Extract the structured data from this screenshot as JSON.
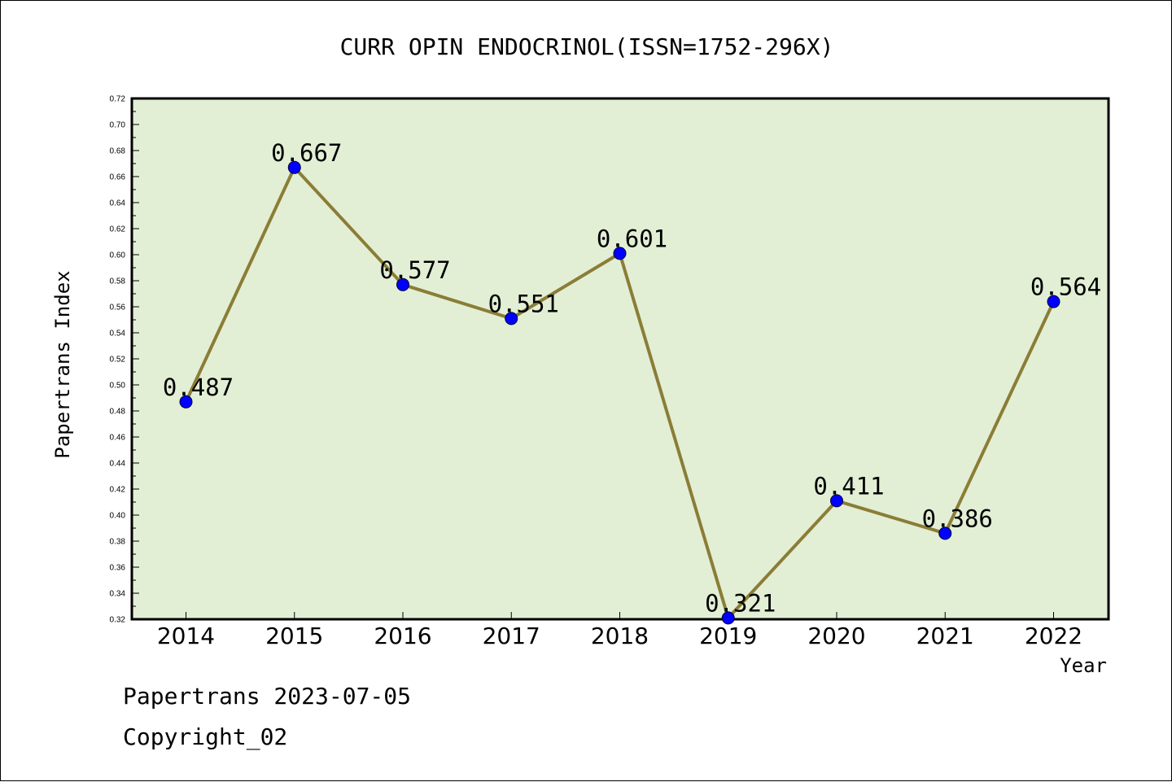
{
  "chart_data": {
    "type": "line",
    "title": "CURR OPIN ENDOCRINOL(ISSN=1752-296X)",
    "xlabel": "Year",
    "ylabel": "Papertrans Index",
    "categories": [
      "2014",
      "2015",
      "2016",
      "2017",
      "2018",
      "2019",
      "2020",
      "2021",
      "2022"
    ],
    "series": [
      {
        "values": [
          0.487,
          0.667,
          0.577,
          0.551,
          0.601,
          0.321,
          0.411,
          0.386,
          0.564
        ]
      }
    ],
    "data_labels": [
      "0.487",
      "0.667",
      "0.577",
      "0.551",
      "0.601",
      "0.321",
      "0.411",
      "0.386",
      "0.564"
    ],
    "ylim": [
      0.32,
      0.72
    ],
    "yticks": [
      "0.32",
      "0.34",
      "0.36",
      "0.38",
      "0.40",
      "0.42",
      "0.44",
      "0.46",
      "0.48",
      "0.50",
      "0.52",
      "0.54",
      "0.56",
      "0.58",
      "0.60",
      "0.62",
      "0.64",
      "0.66",
      "0.68",
      "0.70",
      "0.72"
    ],
    "grid": false,
    "colors": {
      "plot_background": "#e2efd5",
      "line": "#8b7d36",
      "marker": "#0000ff"
    }
  },
  "footer": {
    "line1": "Papertrans 2023-07-05",
    "line2": "Copyright_02"
  }
}
